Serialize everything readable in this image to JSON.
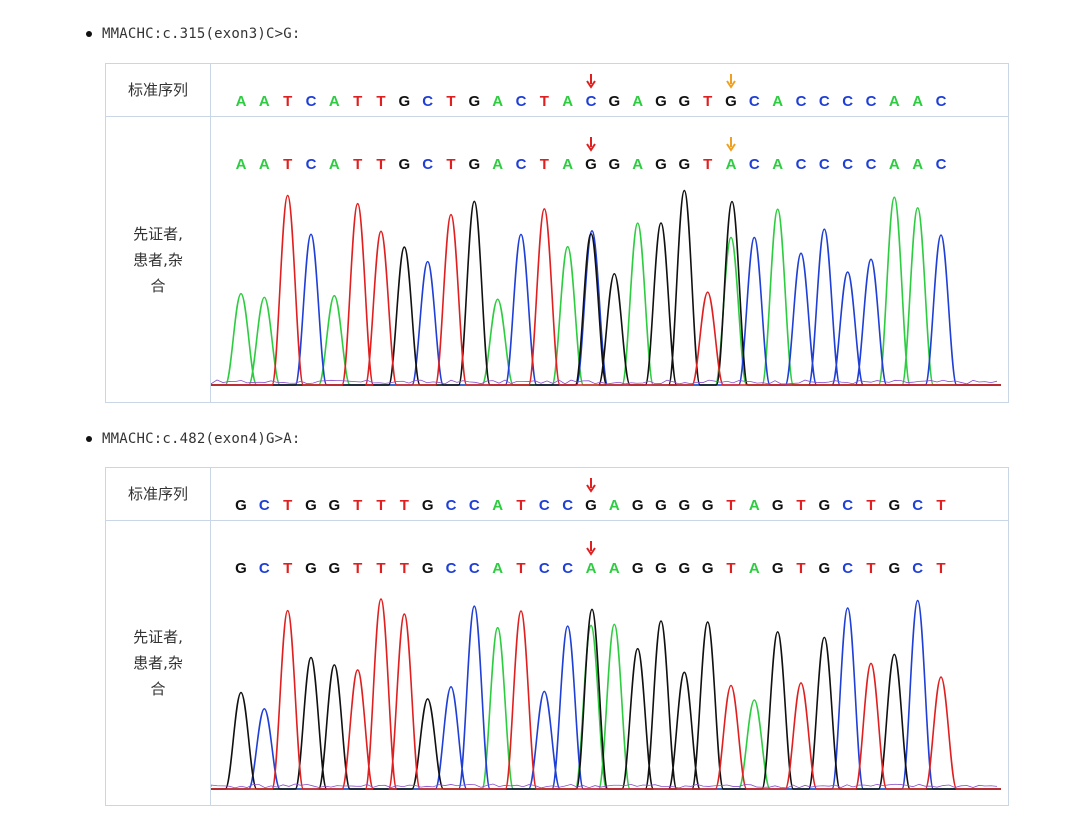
{
  "colors": {
    "A": "#2ecc40",
    "C": "#1f3fd6",
    "G": "#111111",
    "T": "#e02020",
    "arrow_red": "#e02020",
    "arrow_orange": "#f0a020",
    "border": "#c9d6e6"
  },
  "icons": {
    "bullet": "bullet-dot-icon",
    "mutation_arrow": "down-arrow-icon"
  },
  "section1": {
    "heading": "MMACHC:c.315(exon3)C>G:",
    "ref_label": "标准序列",
    "sample_label_lines": [
      "先证者,",
      "患者,杂",
      "合"
    ],
    "ref_sequence": "AATCATTGCTGACTACGAGGTGCACCCCAAC",
    "sample_sequence": "AATCATTGCTGACTAGGAGGTACACCCCAAC",
    "mutation_positions": [
      15,
      21
    ],
    "arrow_colors": [
      "red",
      "orange"
    ]
  },
  "section2": {
    "heading": "MMACHC:c.482(exon4)G>A:",
    "ref_label": "标准序列",
    "sample_label_lines": [
      "先证者,",
      "患者,杂",
      "合"
    ],
    "ref_sequence": "GCTGGTTTGCCATCCGAGGGGTAGTGCTGCT",
    "sample_sequence": "GCTGGTTTGCCATCCAAGGGGTAGTGCTGCT",
    "mutation_positions": [
      15
    ],
    "arrow_colors": [
      "red"
    ]
  }
}
